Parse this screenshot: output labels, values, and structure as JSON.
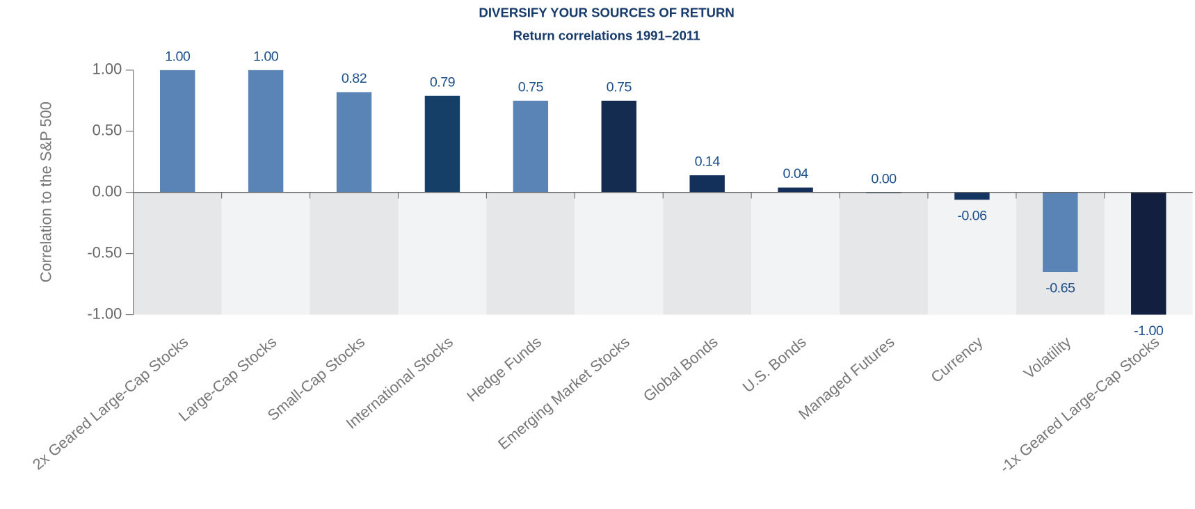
{
  "chart_data": {
    "type": "bar",
    "title": "DIVERSIFY YOUR SOURCES OF RETURN",
    "subtitle": "Return correlations 1991–2011",
    "y_label": "Correlation to the S&P 500",
    "categories": [
      "2x Geared Large-Cap Stocks",
      "Large-Cap Stocks",
      "Small-Cap Stocks",
      "International Stocks",
      "Hedge Funds",
      "Emerging Market Stocks",
      "Global Bonds",
      "U.S. Bonds",
      "Managed Futures",
      "Currency",
      "Volatility",
      "-1x Geared Large-Cap Stocks"
    ],
    "values": [
      1.0,
      1.0,
      0.82,
      0.79,
      0.75,
      0.75,
      0.14,
      0.04,
      0.0,
      -0.06,
      -0.65,
      -1.0
    ],
    "value_labels": [
      "1.00",
      "1.00",
      "0.82",
      "0.79",
      "0.75",
      "0.75",
      "0.14",
      "0.04",
      "0.00",
      "-0.06",
      "-0.65",
      "-1.00"
    ],
    "colors": [
      "#5b84b6",
      "#5b84b6",
      "#5b84b6",
      "#153f66",
      "#5b84b6",
      "#132c50",
      "#13305a",
      "#14305a",
      "#143d66",
      "#153560",
      "#5b84b6",
      "#121f3e"
    ],
    "ylim": [
      -1.0,
      1.0
    ],
    "yticks": [
      {
        "value": -1.0,
        "label": "-1.00"
      },
      {
        "value": -0.5,
        "label": "-0.50"
      },
      {
        "value": 0,
        "label": "0.00"
      },
      {
        "value": 0.5,
        "label": "0.50"
      },
      {
        "value": 1.0,
        "label": "1.00"
      }
    ]
  }
}
